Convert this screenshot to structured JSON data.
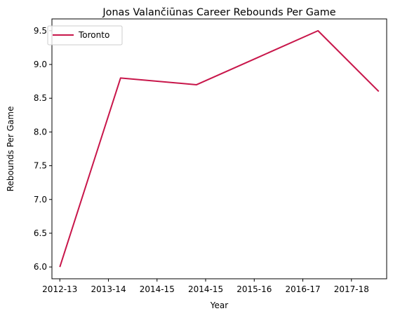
{
  "chart_data": {
    "type": "line",
    "title": "Jonas Valančiūnas Career Rebounds Per Game",
    "xlabel": "Year",
    "ylabel": "Rebounds Per Game",
    "x": [
      2013,
      2014,
      2015.25,
      2016.25,
      2017.25,
      2018.25
    ],
    "xticks": [
      {
        "value": 2013,
        "label": "2012-13"
      },
      {
        "value": 2013.8,
        "label": "2013-14"
      },
      {
        "value": 2014.6,
        "label": "2014-15"
      },
      {
        "value": 2015.4,
        "label": "2014-15"
      },
      {
        "value": 2016.2,
        "label": "2015-16"
      },
      {
        "value": 2017.0,
        "label": "2016-17"
      },
      {
        "value": 2017.8,
        "label": "2017-18"
      }
    ],
    "xlim": [
      2012.87,
      2018.38
    ],
    "ylim": [
      5.825,
      9.675
    ],
    "yticks": [
      6.0,
      6.5,
      7.0,
      7.5,
      8.0,
      8.5,
      9.0,
      9.5
    ],
    "ytick_labels": [
      "6.0",
      "6.5",
      "7.0",
      "7.5",
      "8.0",
      "8.5",
      "9.0",
      "9.5"
    ],
    "grid": false,
    "legend_position": "upper-left",
    "series": [
      {
        "name": "Toronto",
        "color": "#c8164a",
        "x": [
          2013,
          2014,
          2015.25,
          2016.25,
          2017.25,
          2018.25
        ],
        "values": [
          6.0,
          8.8,
          8.7,
          9.1,
          9.5,
          8.6
        ]
      }
    ]
  }
}
